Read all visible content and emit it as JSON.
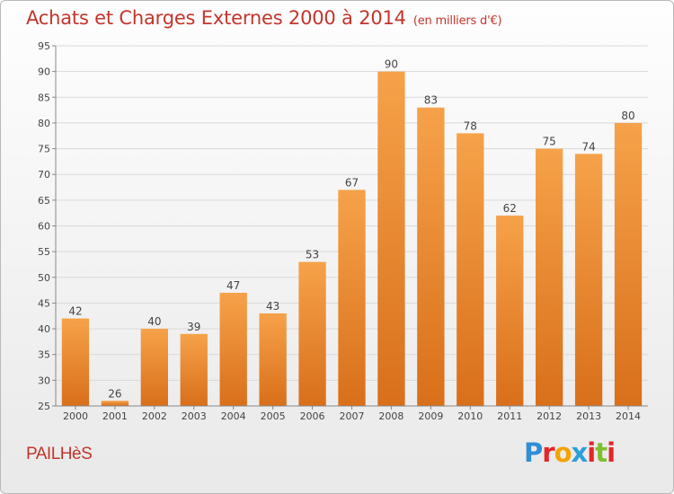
{
  "header": {
    "title": "Achats et Charges Externes 2000 à 2014",
    "unit": "(en milliers d'€)"
  },
  "footer": {
    "commune": "PAILHèS",
    "logo_letters": [
      "P",
      "r",
      "o",
      "x",
      "i",
      "t",
      "i"
    ],
    "logo_colors": [
      "#2f8fd6",
      "#e4262a",
      "#f4a300",
      "#2e9fd8",
      "#e4262a",
      "#7fbf2f",
      "#e4262a"
    ]
  },
  "colors": {
    "bar_top": "#f6a24a",
    "bar_bottom": "#d96f1a",
    "grid": "#d9d9d9",
    "axis": "#888888",
    "title": "#c4342b"
  },
  "chart_data": {
    "type": "bar",
    "title": "Achats et Charges Externes 2000 à 2014",
    "categories": [
      "2000",
      "2001",
      "2002",
      "2003",
      "2004",
      "2005",
      "2006",
      "2007",
      "2008",
      "2009",
      "2010",
      "2011",
      "2012",
      "2013",
      "2014"
    ],
    "values": [
      42,
      26,
      40,
      39,
      47,
      43,
      53,
      67,
      90,
      83,
      78,
      62,
      75,
      74,
      80
    ],
    "ylim": [
      25,
      95
    ],
    "yticks": [
      25,
      30,
      35,
      40,
      45,
      50,
      55,
      60,
      65,
      70,
      75,
      80,
      85,
      90,
      95
    ],
    "grid": true,
    "xlabel": "",
    "ylabel": ""
  }
}
